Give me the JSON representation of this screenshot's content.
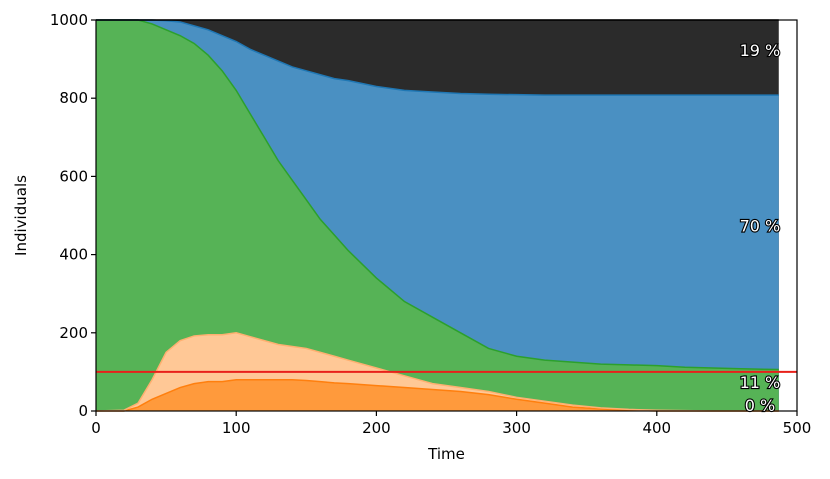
{
  "chart_data": {
    "type": "area",
    "xlabel": "Time",
    "ylabel": "Individuals",
    "xlim": [
      0,
      500
    ],
    "ylim": [
      0,
      1000
    ],
    "x_ticks": [
      "0",
      "100",
      "200",
      "300",
      "400",
      "500"
    ],
    "y_ticks": [
      "0",
      "200",
      "400",
      "600",
      "800",
      "1000"
    ],
    "grid": false,
    "legend": "none",
    "threshold": {
      "y": 100,
      "color": "#e8201a"
    },
    "x": [
      0,
      20,
      30,
      40,
      50,
      60,
      70,
      80,
      90,
      100,
      110,
      120,
      130,
      140,
      150,
      160,
      170,
      180,
      200,
      220,
      240,
      260,
      280,
      300,
      320,
      340,
      360,
      380,
      400,
      420,
      440,
      460,
      487
    ],
    "series": [
      {
        "key": "dark_orange",
        "color": "#ff9a3c",
        "edge": "#ff7f0e",
        "cumulative": [
          0,
          0,
          10,
          30,
          45,
          60,
          70,
          75,
          75,
          80,
          80,
          80,
          80,
          80,
          78,
          75,
          72,
          70,
          65,
          60,
          55,
          50,
          42,
          30,
          20,
          10,
          5,
          2,
          0,
          0,
          0,
          0,
          0
        ]
      },
      {
        "key": "light_orange",
        "color": "#ffc896",
        "edge": "#ffb070",
        "cumulative": [
          0,
          2,
          20,
          80,
          150,
          180,
          192,
          195,
          195,
          200,
          190,
          180,
          170,
          165,
          160,
          150,
          140,
          130,
          110,
          90,
          70,
          60,
          50,
          35,
          25,
          15,
          8,
          4,
          2,
          1,
          0,
          0,
          0
        ]
      },
      {
        "key": "green",
        "color": "#56b356",
        "edge": "#2ca02c",
        "cumulative": [
          1000,
          1000,
          1000,
          990,
          975,
          960,
          940,
          910,
          870,
          820,
          760,
          700,
          640,
          590,
          540,
          490,
          450,
          410,
          340,
          280,
          240,
          200,
          160,
          140,
          130,
          125,
          120,
          118,
          116,
          112,
          110,
          108,
          106
        ]
      },
      {
        "key": "blue",
        "color": "#4a90c2",
        "edge": "#1f77b4",
        "cumulative": [
          1000,
          1000,
          1000,
          1000,
          998,
          995,
          985,
          975,
          960,
          945,
          925,
          910,
          895,
          880,
          870,
          860,
          850,
          845,
          830,
          820,
          816,
          812,
          810,
          809,
          808,
          808,
          808,
          808,
          808,
          808,
          808,
          808,
          808
        ]
      },
      {
        "key": "black",
        "color": "#2b2b2b",
        "edge": "#000000",
        "cumulative": [
          1000,
          1000,
          1000,
          1000,
          1000,
          1000,
          1000,
          1000,
          1000,
          1000,
          1000,
          1000,
          1000,
          1000,
          1000,
          1000,
          1000,
          1000,
          1000,
          1000,
          1000,
          1000,
          1000,
          1000,
          1000,
          1000,
          1000,
          1000,
          1000,
          1000,
          1000,
          1000,
          1000
        ]
      }
    ],
    "annotations": [
      {
        "text": "19 %",
        "x": 470,
        "y": 920
      },
      {
        "text": "70 %",
        "x": 470,
        "y": 470
      },
      {
        "text": "11 %",
        "x": 470,
        "y": 70
      },
      {
        "text": "0 %",
        "x": 470,
        "y": 12
      }
    ]
  }
}
